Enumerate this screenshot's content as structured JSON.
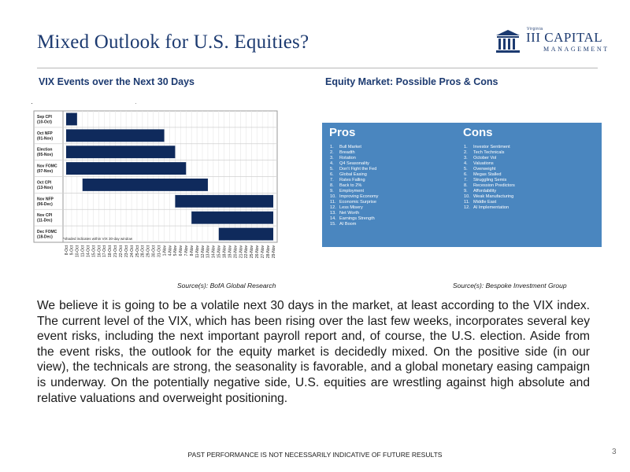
{
  "slide": {
    "title": "Mixed Outlook for U.S. Equities?",
    "page_number": "3",
    "footer": "PAST PERFORMANCE IS NOT NECESSARILY INDICATIVE OF FUTURE RESULTS"
  },
  "logo": {
    "small_text": "Virginia",
    "main_text": "III CAPITAL",
    "sub_text": "MANAGEMENT",
    "color": "#1c3a70"
  },
  "left_section": {
    "heading": "VIX Events over the Next 30 Days",
    "source": "Source(s): BofA Global Research"
  },
  "right_section": {
    "heading": "Equity Market: Possible Pros & Cons",
    "source": "Source(s): Bespoke Investment Group",
    "pros": {
      "title": "Pros",
      "items": [
        "Bull Market",
        "Breadth",
        "Rotation",
        "Q4 Seasonality",
        "Don't Fight the Fed",
        "Global Easing",
        "Rates Falling",
        "Back to 2%",
        "Employment",
        "Improving Economy",
        "Economic Surprise",
        "Less Misery",
        "Net Worth",
        "Earnings Strength",
        "AI Boom"
      ]
    },
    "cons": {
      "title": "Cons",
      "items": [
        "Investor Sentiment",
        "Tech Technicals",
        "October Vol",
        "Valuations",
        "Overweight",
        "Megas Stalled",
        "Struggling Semis",
        "Recession Predictors",
        "Affordability",
        "Weak Manufacturing",
        "Middle East",
        "AI Implementation"
      ]
    },
    "panel_color": "#4a86bf"
  },
  "body_text": "We believe it is going to be a volatile next 30 days in the market, at least according to the VIX index. The current level of the VIX, which has been rising over the last few weeks, incorporates several key event risks, including the next important payroll report and, of course, the U.S. election. Aside from the event risks, the outlook for the equity market is decidedly mixed. On the positive side (in our view), the technicals are strong, the seasonality is favorable, and a global monetary easing campaign is underway. On the potentially negative side, U.S. equities are wrestling against high absolute and relative valuations and overweight positioning.",
  "chart_data": {
    "type": "bar",
    "orientation": "horizontal-range",
    "note": "*shaded indicates within VIX 30-day window",
    "bar_color": "#0f2a5c",
    "x_dates": [
      "8-Oct",
      "9-Oct",
      "10-Oct",
      "11-Oct",
      "14-Oct",
      "15-Oct",
      "16-Oct",
      "17-Oct",
      "18-Oct",
      "21-Oct",
      "22-Oct",
      "23-Oct",
      "24-Oct",
      "25-Oct",
      "28-Oct",
      "29-Oct",
      "30-Oct",
      "31-Oct",
      "1-Nov",
      "4-Nov",
      "5-Nov",
      "6-Nov",
      "7-Nov",
      "8-Nov",
      "11-Nov",
      "12-Nov",
      "13-Nov",
      "14-Nov",
      "15-Nov",
      "18-Nov",
      "19-Nov",
      "20-Nov",
      "21-Nov",
      "22-Nov",
      "25-Nov",
      "26-Nov",
      "27-Nov",
      "28-Nov",
      "29-Nov"
    ],
    "events": [
      {
        "label": [
          "Sep CPI",
          "(10-Oct)"
        ],
        "start": "8-Oct",
        "end": "10-Oct"
      },
      {
        "label": [
          "Oct NFP",
          "(01-Nov)"
        ],
        "start": "8-Oct",
        "end": "1-Nov"
      },
      {
        "label": [
          "Election",
          "(05-Nov)"
        ],
        "start": "8-Oct",
        "end": "5-Nov"
      },
      {
        "label": [
          "Nov FOMC",
          "(07-Nov)"
        ],
        "start": "8-Oct",
        "end": "7-Nov"
      },
      {
        "label": [
          "Oct CPI",
          "(13-Nov)"
        ],
        "start": "11-Oct",
        "end": "13-Nov"
      },
      {
        "label": [
          "Nov NFP",
          "(06-Dec)"
        ],
        "start": "5-Nov",
        "end": "29-Nov"
      },
      {
        "label": [
          "Nov CPI",
          "(11-Dec)"
        ],
        "start": "8-Nov",
        "end": "29-Nov"
      },
      {
        "label": [
          "Dec FOMC",
          "(18-Dec)"
        ],
        "start": "15-Nov",
        "end": "29-Nov"
      }
    ]
  }
}
